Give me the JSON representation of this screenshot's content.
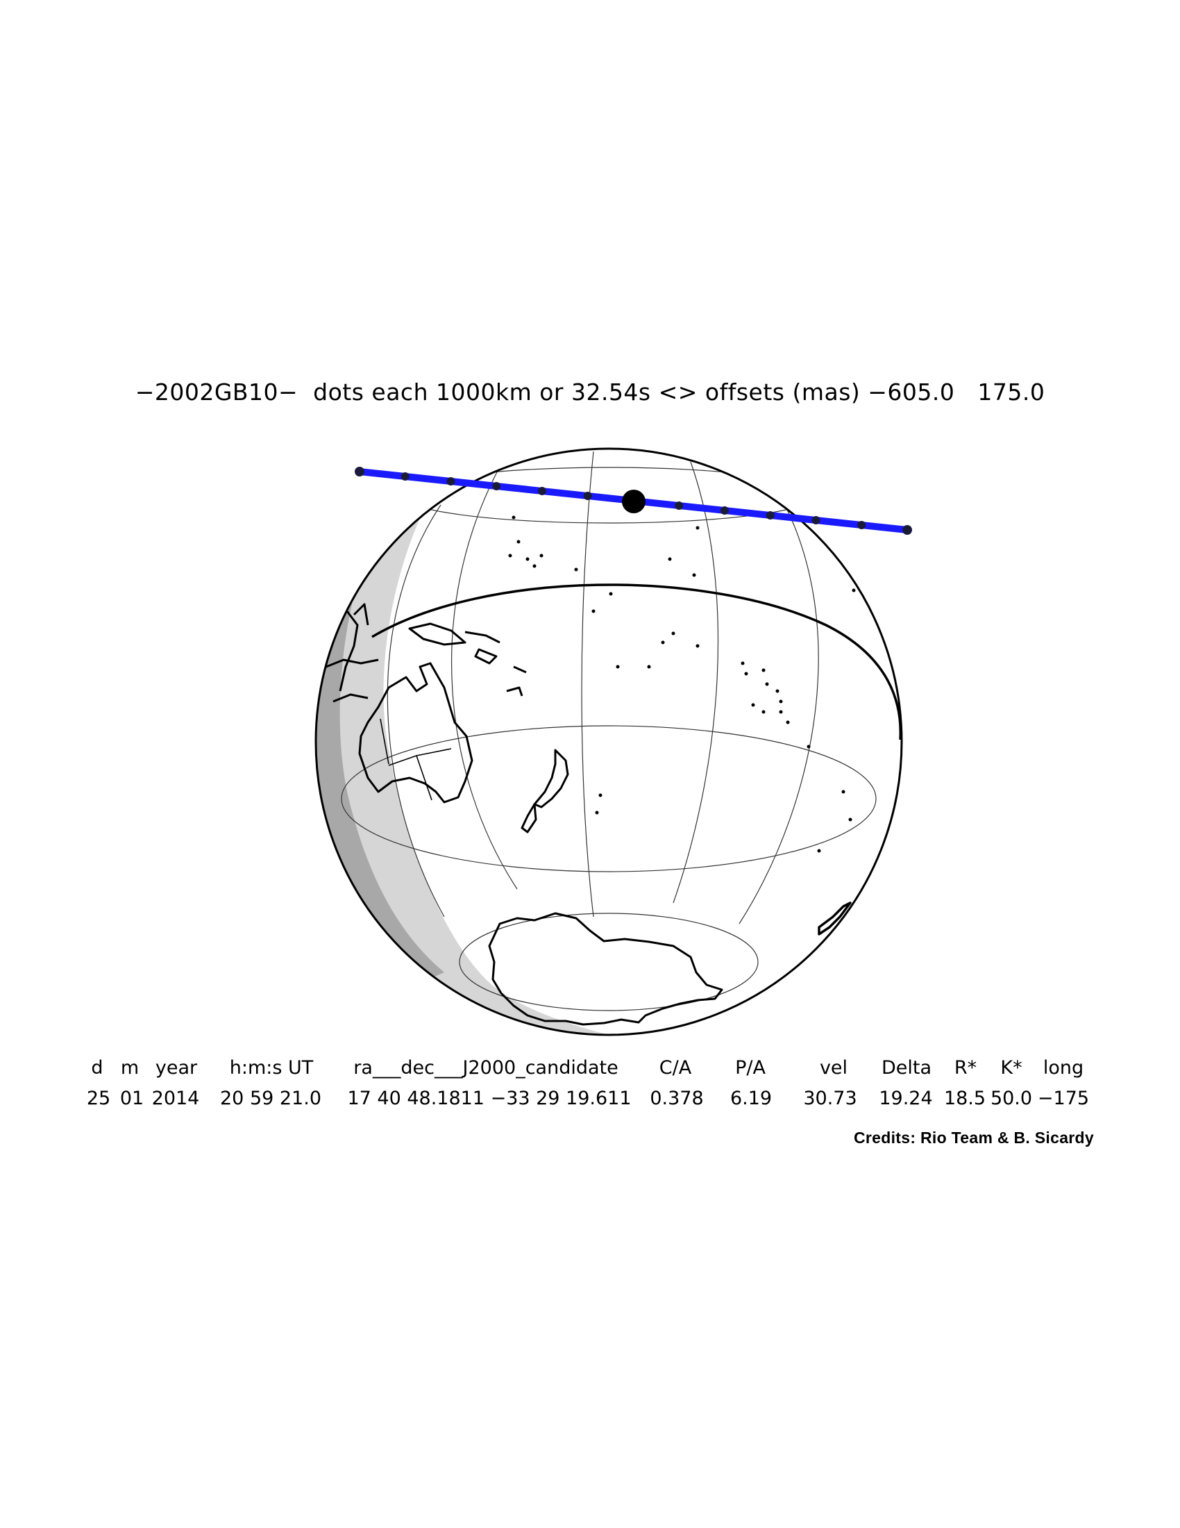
{
  "title": "−2002GB10−  dots each 1000km or 32.54s <> offsets (mas) −605.0   175.0",
  "colors": {
    "track": "#1a1aff",
    "track_dots": "#1a1a3a",
    "night_light": "#d6d6d6",
    "night_dark": "#a8a8a8",
    "coast": "#000000",
    "graticule": "#333333"
  },
  "table": {
    "headers": [
      "d",
      "m",
      "year",
      "h:m:s UT",
      "ra___dec___J2000_candidate",
      "C/A",
      "P/A",
      "vel",
      "Delta",
      "R*",
      "K*",
      "long"
    ],
    "values": [
      "25",
      "01",
      "2014",
      "20 59 21.0",
      "17 40 48.1811 −33 29 19.611",
      "0.378",
      "6.19",
      "30.73",
      "19.24",
      "18.5",
      "50.0",
      "−175"
    ]
  },
  "credits": "Credits: Rio Team & B. Sicardy"
}
